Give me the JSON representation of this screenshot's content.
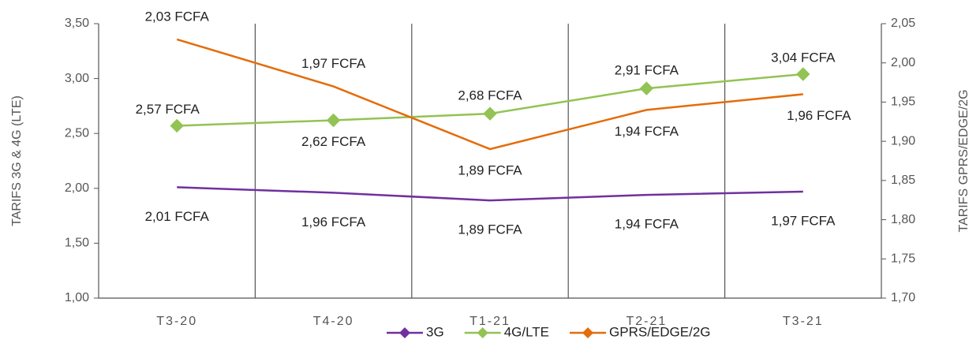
{
  "chart_data": {
    "type": "line",
    "categories": [
      "T3-20",
      "T4-20",
      "T1-21",
      "T2-21",
      "T3-21"
    ],
    "ylabel": "TARIFS 3G & 4G (LTE)",
    "y2label": "TARIFS GPRS/EDGE/2G",
    "ylim": [
      1.0,
      3.5
    ],
    "yticks": [
      {
        "value": 1.0,
        "label": "1,00"
      },
      {
        "value": 1.5,
        "label": "1,50"
      },
      {
        "value": 2.0,
        "label": "2,00"
      },
      {
        "value": 2.5,
        "label": "2,50"
      },
      {
        "value": 3.0,
        "label": "3,00"
      },
      {
        "value": 3.5,
        "label": "3,50"
      }
    ],
    "y2lim": [
      1.7,
      2.05
    ],
    "y2ticks": [
      {
        "value": 1.7,
        "label": "1,70"
      },
      {
        "value": 1.75,
        "label": "1,75"
      },
      {
        "value": 1.8,
        "label": "1,80"
      },
      {
        "value": 1.85,
        "label": "1,85"
      },
      {
        "value": 1.9,
        "label": "1,90"
      },
      {
        "value": 1.95,
        "label": "1,95"
      },
      {
        "value": 2.0,
        "label": "2,00"
      },
      {
        "value": 2.05,
        "label": "2,05"
      }
    ],
    "legend": "bottom",
    "series": [
      {
        "name": "3G",
        "color": "#7030a0",
        "marker": false,
        "values": [
          2.01,
          1.96,
          1.89,
          1.94,
          1.97
        ],
        "value_labels": [
          "2,01 FCFA",
          "1,96 FCFA",
          "1,89 FCFA",
          "1,94 FCFA",
          "1,97 FCFA"
        ]
      },
      {
        "name": "4G/LTE",
        "color": "#92c353",
        "marker": true,
        "values": [
          2.57,
          2.62,
          2.68,
          2.91,
          3.04
        ],
        "value_labels": [
          "2,57 FCFA",
          "2,62 FCFA",
          "2,68 FCFA",
          "2,91 FCFA",
          "3,04 FCFA"
        ]
      },
      {
        "name": "GPRS/EDGE/2G",
        "color": "#e46c0a",
        "marker": false,
        "axis": "y2",
        "values": [
          2.03,
          1.97,
          1.89,
          1.94,
          1.96
        ],
        "value_labels": [
          "2,03 FCFA",
          "1,97 FCFA",
          "1,89 FCFA",
          "1,94 FCFA",
          "1,96 FCFA"
        ]
      }
    ]
  }
}
